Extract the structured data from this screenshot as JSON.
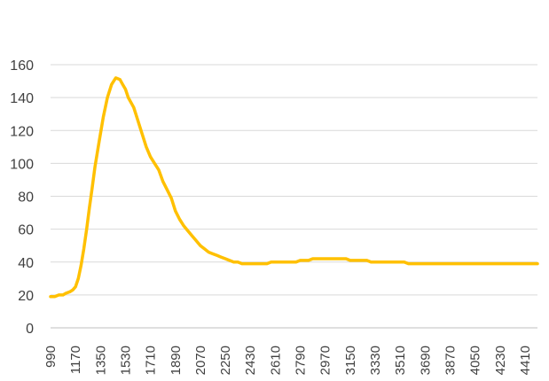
{
  "chart_data": {
    "type": "line",
    "title": "",
    "xlabel": "",
    "ylabel": "",
    "ylim": [
      0,
      160
    ],
    "yticks": [
      0,
      20,
      40,
      60,
      80,
      100,
      120,
      140,
      160
    ],
    "xlim": [
      990,
      4500
    ],
    "xticks": [
      990,
      1170,
      1350,
      1530,
      1710,
      1890,
      2070,
      2250,
      2430,
      2610,
      2790,
      2970,
      3150,
      3330,
      3510,
      3690,
      3870,
      4050,
      4230,
      4410
    ],
    "grid": true,
    "legend": "none",
    "color": "#FFC000",
    "series": [
      {
        "x": [
          990,
          1020,
          1050,
          1080,
          1100,
          1130,
          1150,
          1170,
          1190,
          1210,
          1230,
          1250,
          1270,
          1290,
          1310,
          1340,
          1370,
          1400,
          1430,
          1460,
          1490,
          1510,
          1530,
          1550,
          1570,
          1590,
          1620,
          1650,
          1680,
          1710,
          1740,
          1770,
          1800,
          1830,
          1860,
          1890,
          1920,
          1950,
          1980,
          2010,
          2040,
          2070,
          2100,
          2130,
          2160,
          2190,
          2220,
          2250,
          2280,
          2310,
          2340,
          2370,
          2400,
          2430,
          2460,
          2490,
          2520,
          2550,
          2580,
          2610,
          2640,
          2670,
          2700,
          2730,
          2760,
          2790,
          2820,
          2850,
          2880,
          2910,
          2940,
          2970,
          3000,
          3030,
          3060,
          3090,
          3120,
          3150,
          3180,
          3210,
          3240,
          3270,
          3300,
          3330,
          3360,
          3390,
          3420,
          3450,
          3480,
          3510,
          3540,
          3570,
          3600,
          3630,
          3660,
          3690,
          3720,
          3750,
          3780,
          3810,
          3840,
          3870,
          3900,
          3930,
          3960,
          3990,
          4020,
          4050,
          4080,
          4110,
          4140,
          4170,
          4200,
          4230,
          4260,
          4290,
          4320,
          4350,
          4380,
          4410,
          4440,
          4470,
          4500
        ],
        "values": [
          19,
          19,
          20,
          20,
          21,
          22,
          23,
          25,
          30,
          38,
          48,
          60,
          73,
          85,
          98,
          113,
          128,
          140,
          148,
          152,
          151,
          148,
          145,
          140,
          137,
          134,
          126,
          118,
          110,
          104,
          100,
          96,
          89,
          84,
          79,
          71,
          66,
          62,
          59,
          56,
          53,
          50,
          48,
          46,
          45,
          44,
          43,
          42,
          41,
          40,
          40,
          39,
          39,
          39,
          39,
          39,
          39,
          39,
          40,
          40,
          40,
          40,
          40,
          40,
          40,
          41,
          41,
          41,
          42,
          42,
          42,
          42,
          42,
          42,
          42,
          42,
          42,
          41,
          41,
          41,
          41,
          41,
          40,
          40,
          40,
          40,
          40,
          40,
          40,
          40,
          40,
          39,
          39,
          39,
          39,
          39,
          39,
          39,
          39,
          39,
          39,
          39,
          39,
          39,
          39,
          39,
          39,
          39,
          39,
          39,
          39,
          39,
          39,
          39,
          39,
          39,
          39,
          39,
          39,
          39,
          39,
          39,
          39
        ]
      }
    ]
  }
}
